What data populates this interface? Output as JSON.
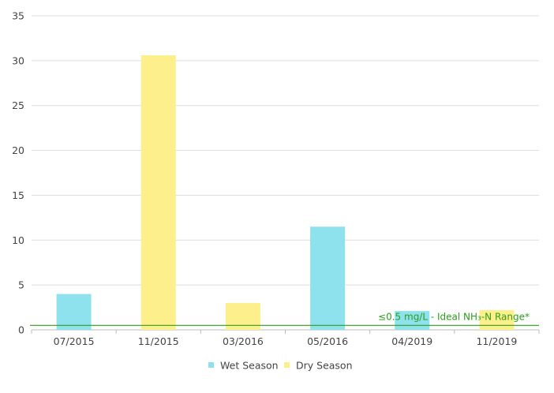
{
  "chart_data": {
    "type": "bar",
    "categories": [
      "07/2015",
      "11/2015",
      "03/2016",
      "05/2016",
      "04/2019",
      "11/2019"
    ],
    "series": [
      {
        "name": "Wet Season",
        "color": "#8ee2ee",
        "values": [
          4.0,
          null,
          null,
          11.5,
          2.1,
          null
        ]
      },
      {
        "name": "Dry Season",
        "color": "#fdf08c",
        "values": [
          null,
          30.6,
          3.0,
          null,
          null,
          2.2
        ]
      }
    ],
    "ylim": [
      0,
      35
    ],
    "yticks": [
      0,
      5,
      10,
      15,
      20,
      25,
      30,
      35
    ],
    "grid": true,
    "legend_position": "bottom",
    "reference_line": {
      "value": 0.5,
      "label": "≤0.5 mg/L - Ideal NH₃-N Range*",
      "color": "#2e9e1e"
    }
  }
}
